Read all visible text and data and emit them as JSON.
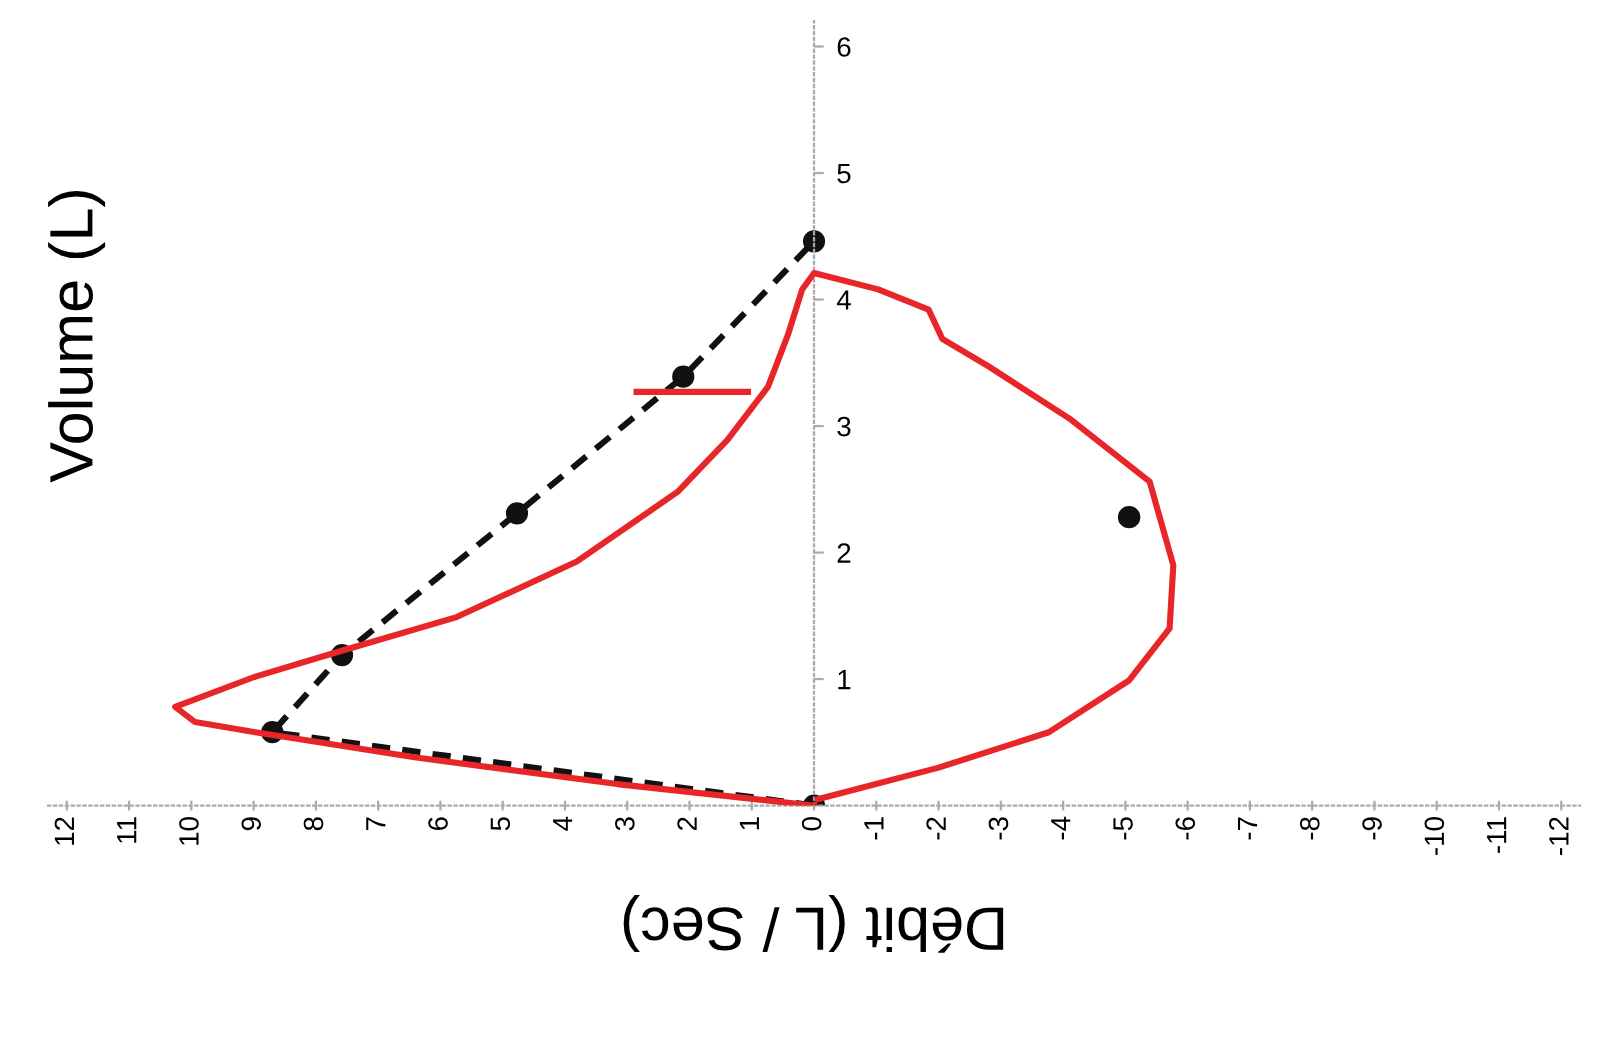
{
  "chart_data": {
    "type": "line",
    "xlabel": "Débit (L / Sec)",
    "ylabel": "Volume (L)",
    "xlim": [
      12.3,
      -12.3
    ],
    "ylim": [
      0,
      6.2
    ],
    "xticks": [
      12,
      11,
      10,
      9,
      8,
      7,
      6,
      5,
      4,
      3,
      2,
      1,
      0,
      -1,
      -2,
      -3,
      -4,
      -5,
      -6,
      -7,
      -8,
      -9,
      -10,
      -11,
      -12
    ],
    "yticks": [
      1,
      2,
      3,
      4,
      5,
      6
    ],
    "series": [
      {
        "color": "#e8262a",
        "line_style": "solid",
        "marker": "none",
        "x": [
          0,
          3.16,
          6.39,
          8.97,
          9.94,
          10.26,
          8.97,
          7.68,
          5.74,
          3.81,
          2.19,
          1.39,
          0.74,
          0.42,
          0.19,
          0,
          -1.03,
          -1.84,
          -2.06,
          -2.81,
          -4.1,
          -5.39,
          -5.77,
          -5.71,
          -5.06,
          -3.77,
          -2.0,
          -0.06
        ],
        "values": [
          0,
          0.17,
          0.38,
          0.58,
          0.66,
          0.78,
          1.02,
          1.21,
          1.49,
          1.93,
          2.48,
          2.89,
          3.31,
          3.72,
          4.08,
          4.21,
          4.08,
          3.92,
          3.69,
          3.47,
          3.06,
          2.56,
          1.9,
          1.4,
          0.99,
          0.58,
          0.3,
          0.05
        ]
      },
      {
        "color": "#e8262a",
        "line_style": "solid",
        "marker": "none",
        "x": [
          2.85,
          1.06
        ],
        "values": [
          3.27,
          3.27
        ]
      },
      {
        "type": "line",
        "color": "#111111",
        "line_style": "dashed",
        "marker": "circle",
        "x": [
          0,
          8.7,
          7.58,
          4.77,
          2.1,
          0
        ],
        "values": [
          0,
          0.58,
          1.19,
          2.31,
          3.39,
          4.46
        ]
      },
      {
        "type": "scatter",
        "color": "#111111",
        "marker": "circle",
        "x": [
          -5.06
        ],
        "values": [
          2.28
        ]
      }
    ]
  }
}
